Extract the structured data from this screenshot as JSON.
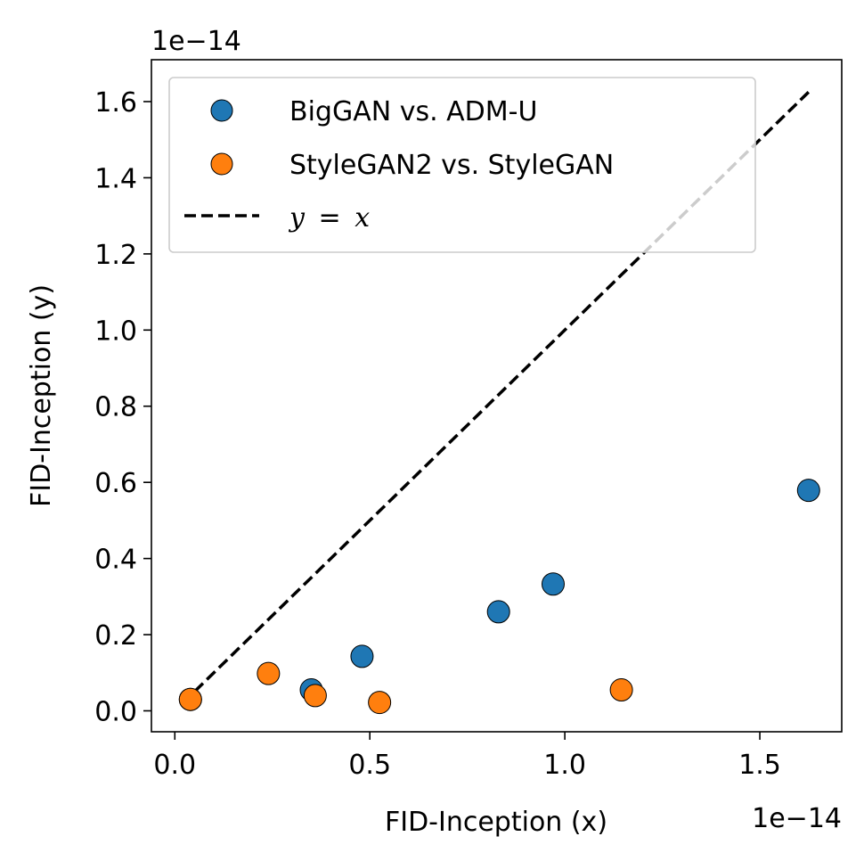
{
  "chart_data": {
    "type": "scatter",
    "xlabel": "FID-Inception (x)",
    "ylabel": "FID-Inception (y)",
    "x_offset_label": "1e−14",
    "y_offset_label": "1e−14",
    "x_scale_note": "values in units of 1e-14",
    "xlim": [
      -0.06,
      1.71
    ],
    "ylim": [
      -0.055,
      1.71
    ],
    "x_ticks": [
      0.0,
      0.5,
      1.0,
      1.5
    ],
    "x_tick_labels": [
      "0.0",
      "0.5",
      "1.0",
      "1.5"
    ],
    "y_ticks": [
      0.0,
      0.2,
      0.4,
      0.6,
      0.8,
      1.0,
      1.2,
      1.4,
      1.6
    ],
    "y_tick_labels": [
      "0.0",
      "0.2",
      "0.4",
      "0.6",
      "0.8",
      "1.0",
      "1.2",
      "1.4",
      "1.6"
    ],
    "grid": false,
    "legend_position": "top-left",
    "series": [
      {
        "name": "BigGAN vs. ADM-U",
        "color": "#1f77b4",
        "marker": "circle",
        "x": [
          0.04,
          0.35,
          0.48,
          0.83,
          0.97,
          1.625
        ],
        "y": [
          0.03,
          0.055,
          0.143,
          0.26,
          0.333,
          0.579
        ]
      },
      {
        "name": "StyleGAN2 vs. StyleGAN",
        "color": "#ff7f0e",
        "marker": "circle",
        "x": [
          0.04,
          0.24,
          0.36,
          0.525,
          1.145
        ],
        "y": [
          0.03,
          0.098,
          0.04,
          0.022,
          0.055
        ]
      }
    ],
    "reference_line": {
      "name": "y = x",
      "legend_label_var1": "y",
      "legend_label_eq": "=",
      "legend_label_var2": "x",
      "color": "#000000",
      "style": "dashed",
      "x": [
        0.02,
        1.625
      ],
      "y": [
        0.02,
        1.625
      ]
    }
  }
}
